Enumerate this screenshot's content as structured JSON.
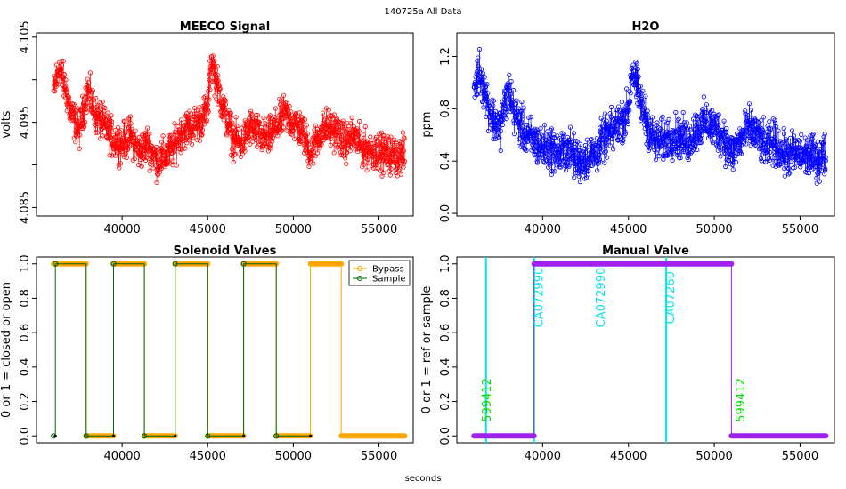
{
  "page": {
    "main_title": "140725a   All Data",
    "xlabel": "seconds",
    "colors": {
      "meeco": "#ff0000",
      "h2o": "#0000ff",
      "bypass": "#ffa500",
      "sample": "#006400",
      "manual": "#a020f0",
      "cyan": "#00e5ee",
      "green": "#00dd00"
    }
  },
  "chart_data": [
    {
      "id": "meeco",
      "type": "scatter",
      "title": "MEECO Signal",
      "xlabel": "",
      "ylabel": "volts",
      "xlim": [
        35000,
        57000
      ],
      "ylim": [
        4.084,
        4.1055
      ],
      "xticks": [
        40000,
        45000,
        50000,
        55000
      ],
      "yticks": [
        4.085,
        4.09,
        4.095,
        4.1,
        4.105
      ],
      "yticklabels": [
        "4.085",
        "",
        "4.095",
        "",
        "4.105"
      ],
      "xrange": [
        36000,
        56500
      ],
      "anchors": [
        [
          36000,
          4.0985
        ],
        [
          36300,
          4.1015
        ],
        [
          36700,
          4.099
        ],
        [
          37000,
          4.096
        ],
        [
          37500,
          4.094
        ],
        [
          38000,
          4.099
        ],
        [
          38400,
          4.096
        ],
        [
          39000,
          4.0945
        ],
        [
          39500,
          4.093
        ],
        [
          40000,
          4.0925
        ],
        [
          40500,
          4.0935
        ],
        [
          41000,
          4.0915
        ],
        [
          41500,
          4.0925
        ],
        [
          42000,
          4.0905
        ],
        [
          42500,
          4.091
        ],
        [
          43000,
          4.092
        ],
        [
          43500,
          4.094
        ],
        [
          44000,
          4.0945
        ],
        [
          44500,
          4.095
        ],
        [
          45000,
          4.0965
        ],
        [
          45200,
          4.1025
        ],
        [
          45600,
          4.099
        ],
        [
          46000,
          4.096
        ],
        [
          46500,
          4.093
        ],
        [
          47000,
          4.0925
        ],
        [
          47500,
          4.0945
        ],
        [
          48000,
          4.0935
        ],
        [
          48500,
          4.093
        ],
        [
          49000,
          4.0945
        ],
        [
          49500,
          4.096
        ],
        [
          50000,
          4.095
        ],
        [
          50500,
          4.094
        ],
        [
          51000,
          4.0915
        ],
        [
          51500,
          4.0935
        ],
        [
          52000,
          4.0945
        ],
        [
          52500,
          4.094
        ],
        [
          53000,
          4.0925
        ],
        [
          53500,
          4.0935
        ],
        [
          54000,
          4.092
        ],
        [
          55000,
          4.0915
        ],
        [
          56000,
          4.091
        ],
        [
          56500,
          4.0912
        ]
      ],
      "noise": 0.0032,
      "points": 1400,
      "color": "#ff0000"
    },
    {
      "id": "h2o",
      "type": "scatter",
      "title": "H2O",
      "xlabel": "",
      "ylabel": "ppm",
      "xlim": [
        35000,
        57000
      ],
      "ylim": [
        -0.02,
        1.38
      ],
      "xticks": [
        40000,
        45000,
        50000,
        55000
      ],
      "yticks": [
        0.0,
        0.4,
        0.8,
        1.2
      ],
      "yticklabels": [
        "0.0",
        "0.4",
        "0.8",
        "1.2"
      ],
      "xrange": [
        36000,
        56500
      ],
      "anchors": [
        [
          36000,
          0.95
        ],
        [
          36300,
          1.1
        ],
        [
          36700,
          0.9
        ],
        [
          37000,
          0.75
        ],
        [
          37500,
          0.65
        ],
        [
          38000,
          0.95
        ],
        [
          38400,
          0.75
        ],
        [
          39000,
          0.6
        ],
        [
          39500,
          0.55
        ],
        [
          40000,
          0.5
        ],
        [
          40500,
          0.5
        ],
        [
          41000,
          0.45
        ],
        [
          41500,
          0.5
        ],
        [
          42000,
          0.4
        ],
        [
          42500,
          0.42
        ],
        [
          43000,
          0.45
        ],
        [
          43500,
          0.55
        ],
        [
          44000,
          0.62
        ],
        [
          44500,
          0.7
        ],
        [
          45000,
          0.78
        ],
        [
          45200,
          1.12
        ],
        [
          45600,
          0.9
        ],
        [
          46000,
          0.72
        ],
        [
          46500,
          0.55
        ],
        [
          47000,
          0.55
        ],
        [
          47500,
          0.6
        ],
        [
          48000,
          0.58
        ],
        [
          48500,
          0.55
        ],
        [
          49000,
          0.65
        ],
        [
          49500,
          0.7
        ],
        [
          50000,
          0.65
        ],
        [
          50500,
          0.6
        ],
        [
          51000,
          0.45
        ],
        [
          51500,
          0.55
        ],
        [
          52000,
          0.65
        ],
        [
          52500,
          0.6
        ],
        [
          53000,
          0.5
        ],
        [
          53500,
          0.55
        ],
        [
          54000,
          0.45
        ],
        [
          55000,
          0.45
        ],
        [
          56000,
          0.42
        ],
        [
          56500,
          0.45
        ]
      ],
      "noise": 0.24,
      "points": 1400,
      "color": "#0000ff"
    },
    {
      "id": "valves",
      "type": "line",
      "title": "Solenoid Valves",
      "xlabel": "",
      "ylabel": "0 or 1 = closed or open",
      "xlim": [
        35000,
        57000
      ],
      "ylim": [
        -0.04,
        1.04
      ],
      "xticks": [
        40000,
        45000,
        50000,
        55000
      ],
      "yticks": [
        0.0,
        0.2,
        0.4,
        0.6,
        0.8,
        1.0
      ],
      "yticklabels": [
        "0.0",
        "0.2",
        "0.4",
        "0.6",
        "0.8",
        "1.0"
      ],
      "legend": {
        "position": "top-right",
        "entries": [
          "Bypass",
          "Sample"
        ]
      },
      "series": [
        {
          "name": "Bypass",
          "color": "#ffa500",
          "segments": [
            [
              36000,
              37900,
              1
            ],
            [
              37900,
              39500,
              0
            ],
            [
              39500,
              41300,
              1
            ],
            [
              41300,
              43100,
              0
            ],
            [
              43100,
              45000,
              1
            ],
            [
              45000,
              47100,
              0
            ],
            [
              47100,
              49000,
              1
            ],
            [
              49000,
              51000,
              0
            ],
            [
              51000,
              52800,
              1
            ],
            [
              52800,
              56500,
              0
            ]
          ]
        },
        {
          "name": "Sample",
          "color": "#006400",
          "segments": [
            [
              36000,
              36100,
              0
            ],
            [
              36100,
              37900,
              1
            ],
            [
              37900,
              39500,
              0
            ],
            [
              39500,
              41300,
              1
            ],
            [
              41300,
              43100,
              0
            ],
            [
              43100,
              45000,
              1
            ],
            [
              45000,
              47100,
              0
            ],
            [
              47100,
              49000,
              1
            ],
            [
              49000,
              51000,
              0
            ]
          ]
        }
      ]
    },
    {
      "id": "manual",
      "type": "line",
      "title": "Manual Valve",
      "xlabel": "",
      "ylabel": "0 or 1 = ref or sample",
      "xlim": [
        35000,
        57000
      ],
      "ylim": [
        -0.04,
        1.04
      ],
      "xticks": [
        40000,
        45000,
        50000,
        55000
      ],
      "yticks": [
        0.0,
        0.2,
        0.4,
        0.6,
        0.8,
        1.0
      ],
      "yticklabels": [
        "0.0",
        "0.2",
        "0.4",
        "0.6",
        "0.8",
        "1.0"
      ],
      "series": [
        {
          "name": "Manual",
          "color": "#a020f0",
          "segments": [
            [
              36000,
              39500,
              0
            ],
            [
              39500,
              51000,
              1
            ],
            [
              51000,
              56500,
              0
            ]
          ]
        }
      ],
      "vlines": [
        {
          "x": 36700,
          "color": "#00e5ee"
        },
        {
          "x": 39500,
          "color": "#00e5ee"
        },
        {
          "x": 47200,
          "color": "#00e5ee"
        }
      ],
      "annotations": [
        {
          "text": "599412",
          "x": 36700,
          "y": 0.08,
          "color": "#00dd00"
        },
        {
          "text": "CA072990",
          "x": 39750,
          "y": 0.63,
          "color": "#00e5ee"
        },
        {
          "text": "CA072990",
          "x": 43350,
          "y": 0.63,
          "color": "#00e5ee"
        },
        {
          "text": "CA07260",
          "x": 47400,
          "y": 0.65,
          "color": "#00e5ee"
        },
        {
          "text": "599412",
          "x": 51500,
          "y": 0.08,
          "color": "#00dd00"
        }
      ]
    }
  ]
}
